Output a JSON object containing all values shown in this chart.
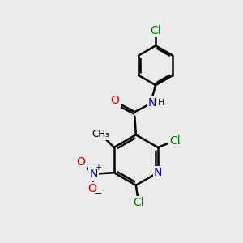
{
  "bg_color": "#ebebeb",
  "bond_color": "#000000",
  "bond_width": 1.8,
  "atom_colors": {
    "C": "#000000",
    "N": "#0000cc",
    "O": "#cc0000",
    "Cl": "#008000"
  },
  "font_size": 10
}
